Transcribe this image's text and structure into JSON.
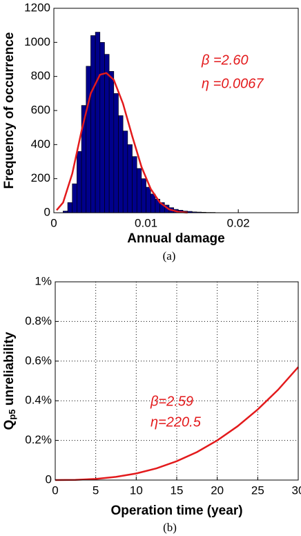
{
  "chart_data": [
    {
      "type": "histogram",
      "xlabel": "Annual damage",
      "ylabel": [
        "Frequency of occurrence"
      ],
      "caption": "(a)",
      "bins": [
        0.001,
        0.0015,
        0.002,
        0.0025,
        0.003,
        0.0035,
        0.004,
        0.0045,
        0.005,
        0.0055,
        0.006,
        0.0065,
        0.007,
        0.0075,
        0.008,
        0.0085,
        0.009,
        0.0095,
        0.01,
        0.0105,
        0.011,
        0.0115,
        0.012,
        0.0125,
        0.013,
        0.0135,
        0.014,
        0.0145,
        0.015,
        0.0155,
        0.016,
        0.0165,
        0.017,
        0.0175,
        0.018
      ],
      "values": [
        10,
        60,
        170,
        360,
        630,
        860,
        1040,
        1060,
        1000,
        930,
        830,
        700,
        570,
        480,
        400,
        330,
        260,
        200,
        150,
        110,
        80,
        60,
        45,
        30,
        20,
        15,
        10,
        8,
        5,
        4,
        3,
        2,
        2,
        1
      ],
      "color": "#00008b",
      "curve": {
        "color": "#e31a1c",
        "x": [
          0.0003,
          0.001,
          0.002,
          0.003,
          0.004,
          0.005,
          0.0057,
          0.0065,
          0.0075,
          0.0085,
          0.0095,
          0.0105,
          0.0115,
          0.0125,
          0.0135,
          0.0145
        ],
        "values": [
          15,
          60,
          230,
          480,
          700,
          810,
          820,
          780,
          640,
          450,
          270,
          140,
          60,
          20,
          5,
          1
        ]
      },
      "annotations": [
        "β =2.60",
        "η =0.0067"
      ],
      "xlim": [
        0,
        0.0265
      ],
      "xticks": [
        0,
        0.01,
        0.02
      ],
      "ylim": [
        0,
        1200
      ],
      "yticks": [
        0,
        200,
        400,
        600,
        800,
        1000,
        1200
      ],
      "grid": false
    },
    {
      "type": "line",
      "xlabel": "Operation time (year)",
      "ylabel": [
        "Q",
        "p5",
        " unreliability"
      ],
      "caption": "(b)",
      "x": [
        0,
        2.5,
        5,
        7.5,
        10,
        12.5,
        15,
        17.5,
        20,
        22.5,
        25,
        27.5,
        30
      ],
      "values": [
        0,
        0.0009,
        0.0055,
        0.016,
        0.033,
        0.059,
        0.095,
        0.141,
        0.2,
        0.271,
        0.356,
        0.455,
        0.57
      ],
      "color": "#e31a1c",
      "annotations": [
        "β=2.59",
        "η=220.5"
      ],
      "xlim": [
        0,
        30
      ],
      "xticks": [
        0,
        5,
        10,
        15,
        20,
        25,
        30
      ],
      "ylim": [
        0,
        1
      ],
      "yticks": [
        0,
        {
          "value": 0.2,
          "label": "0.2%"
        },
        {
          "value": 0.4,
          "label": "0.4%"
        },
        {
          "value": 0.6,
          "label": "0.6%"
        },
        {
          "value": 0.8,
          "label": "0.8%"
        },
        {
          "value": 1,
          "label": "1%"
        }
      ],
      "grid": true
    }
  ]
}
